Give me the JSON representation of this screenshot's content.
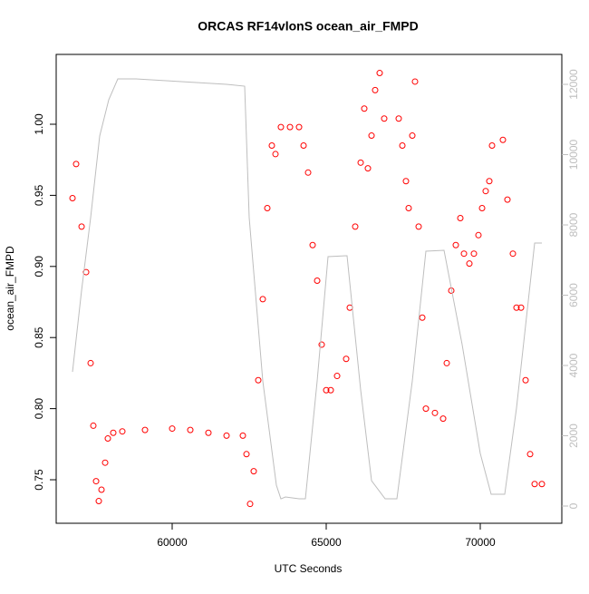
{
  "chart_data": {
    "type": "scatter",
    "title": "ORCAS RF14vlonS ocean_air_FMPD",
    "xlabel": "UTC Seconds",
    "ylabel": "ocean_air_FMPD",
    "xlim": [
      56235,
      72647
    ],
    "ylim": [
      0.7194,
      1.0491
    ],
    "y2lim": [
      -490,
      12852
    ],
    "xticks": [
      60000,
      65000,
      70000
    ],
    "yticks": [
      0.75,
      {
        "value": 0.8,
        "label": "0.80"
      },
      0.85,
      {
        "value": 0.9,
        "label": "0.90"
      },
      0.95,
      {
        "value": 1,
        "label": "1.00"
      }
    ],
    "y2ticks": [
      0,
      2000,
      4000,
      6000,
      8000,
      10000,
      12000
    ],
    "series": [
      {
        "type": "scatter",
        "color": "#ff0000",
        "x": [
          56765,
          56882,
          57060,
          57206,
          57353,
          57441,
          57530,
          57618,
          57706,
          57824,
          57912,
          58088,
          58382,
          59118,
          60000,
          60588,
          61176,
          61765,
          62294,
          62412,
          62529,
          62647,
          62794,
          62941,
          63088,
          63235,
          63353,
          63529,
          63824,
          64118,
          64265,
          64412,
          64559,
          64706,
          64853,
          65000,
          65147,
          65353,
          65647,
          65765,
          65941,
          66118,
          66235,
          66353,
          66471,
          66588,
          66735,
          66882,
          67353,
          67471,
          67588,
          67676,
          67794,
          67882,
          68000,
          68118,
          68235,
          68529,
          68794,
          68912,
          69059,
          69206,
          69353,
          69471,
          69647,
          69794,
          69941,
          70059,
          70176,
          70294,
          70382,
          70735,
          70882,
          71059,
          71176,
          71324,
          71471,
          71618,
          71765,
          72000
        ],
        "values": [
          0.948,
          0.972,
          0.928,
          0.896,
          0.832,
          0.788,
          0.749,
          0.735,
          0.743,
          0.762,
          0.779,
          0.783,
          0.784,
          0.785,
          0.786,
          0.785,
          0.783,
          0.781,
          0.781,
          0.768,
          0.733,
          0.756,
          0.82,
          0.877,
          0.941,
          0.985,
          0.979,
          0.998,
          0.998,
          0.998,
          0.985,
          0.966,
          0.915,
          0.89,
          0.845,
          0.813,
          0.813,
          0.823,
          0.835,
          0.871,
          0.928,
          0.973,
          1.011,
          0.969,
          0.992,
          1.024,
          1.036,
          1.004,
          1.004,
          0.985,
          0.96,
          0.941,
          0.992,
          1.03,
          0.928,
          0.864,
          0.8,
          0.797,
          0.793,
          0.832,
          0.883,
          0.915,
          0.934,
          0.909,
          0.902,
          0.909,
          0.922,
          0.941,
          0.953,
          0.96,
          0.985,
          0.989,
          0.947,
          0.909,
          0.871,
          0.871,
          0.82,
          0.768,
          0.747,
          0.747
        ]
      },
      {
        "type": "line",
        "axis": "y2",
        "color": "#bebebe",
        "x": [
          56765,
          57060,
          57353,
          57647,
          57941,
          58235,
          58824,
          60294,
          61765,
          62353,
          62500,
          62941,
          63382,
          63529,
          63676,
          64118,
          64324,
          64706,
          65059,
          65676,
          66118,
          66471,
          66912,
          67294,
          67794,
          68235,
          68824,
          69412,
          70000,
          70353,
          70794,
          71176,
          71765,
          72000
        ],
        "values": [
          3819,
          6142,
          8206,
          10529,
          11561,
          12155,
          12155,
          12077,
          12000,
          11948,
          8206,
          3561,
          594,
          206,
          258,
          206,
          206,
          3561,
          7097,
          7123,
          3303,
          723,
          206,
          206,
          3561,
          7252,
          7277,
          4594,
          1497,
          335,
          335,
          2787,
          7484,
          7484
        ]
      }
    ]
  }
}
